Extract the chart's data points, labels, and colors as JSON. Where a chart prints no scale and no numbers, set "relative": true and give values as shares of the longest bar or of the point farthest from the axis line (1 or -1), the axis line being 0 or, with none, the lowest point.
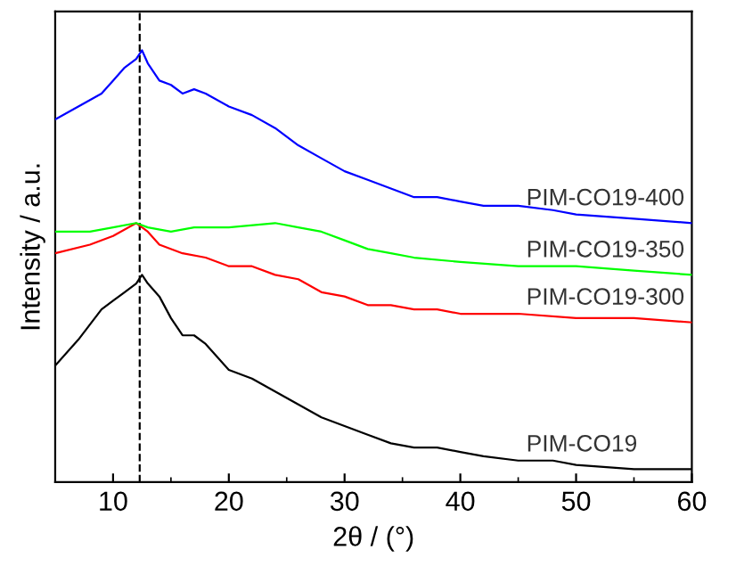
{
  "chart_data": {
    "type": "line",
    "relative": true,
    "xlabel": "2θ / (°)",
    "ylabel": "Intensity / a.u.",
    "xlim": [
      5,
      60
    ],
    "xticks": [
      10,
      20,
      30,
      40,
      50,
      60
    ],
    "legend": false,
    "grid": false,
    "marker": "none",
    "line_style": "solid",
    "ref_lines": [
      {
        "axis": "x",
        "value": 12.3,
        "color": "#000000",
        "line_style": "dashed"
      }
    ],
    "series": [
      {
        "name": "PIM-CO19-400",
        "color": "#0000ff",
        "x": [
          5,
          7,
          9,
          10,
          11,
          12,
          12.5,
          13,
          14,
          15,
          16,
          17,
          18,
          20,
          22,
          24,
          25,
          26,
          28,
          30,
          32,
          34,
          36,
          38,
          40,
          42,
          45,
          48,
          50,
          55,
          60
        ],
        "values": [
          0.84,
          0.87,
          0.9,
          0.93,
          0.96,
          0.98,
          1,
          0.97,
          0.93,
          0.92,
          0.9,
          0.91,
          0.9,
          0.87,
          0.85,
          0.82,
          0.8,
          0.78,
          0.75,
          0.72,
          0.7,
          0.68,
          0.66,
          0.66,
          0.65,
          0.64,
          0.64,
          0.63,
          0.62,
          0.61,
          0.6
        ]
      },
      {
        "name": "PIM-CO19-350",
        "color": "#00ff00",
        "x": [
          5,
          8,
          10,
          12,
          13,
          15,
          17,
          20,
          24,
          26,
          28,
          30,
          32,
          34,
          36,
          40,
          45,
          50,
          55,
          60
        ],
        "values": [
          0.58,
          0.58,
          0.59,
          0.6,
          0.59,
          0.58,
          0.59,
          0.59,
          0.6,
          0.59,
          0.58,
          0.56,
          0.54,
          0.53,
          0.52,
          0.51,
          0.5,
          0.5,
          0.49,
          0.48
        ]
      },
      {
        "name": "PIM-CO19-300",
        "color": "#ff0000",
        "x": [
          5,
          8,
          10,
          12,
          13,
          14,
          16,
          18,
          20,
          22,
          24,
          26,
          28,
          30,
          32,
          34,
          36,
          38,
          40,
          45,
          50,
          55,
          60
        ],
        "values": [
          0.53,
          0.55,
          0.57,
          0.6,
          0.58,
          0.55,
          0.53,
          0.52,
          0.5,
          0.5,
          0.48,
          0.47,
          0.44,
          0.43,
          0.41,
          0.41,
          0.4,
          0.4,
          0.39,
          0.39,
          0.38,
          0.38,
          0.37
        ]
      },
      {
        "name": "PIM-CO19",
        "color": "#000000",
        "x": [
          5,
          7,
          9,
          10,
          11,
          12,
          12.5,
          13,
          14,
          15,
          16,
          17,
          18,
          19,
          20,
          22,
          24,
          26,
          28,
          30,
          32,
          34,
          36,
          38,
          40,
          42,
          45,
          48,
          50,
          55,
          60
        ],
        "values": [
          0.27,
          0.33,
          0.4,
          0.42,
          0.44,
          0.46,
          0.48,
          0.46,
          0.43,
          0.38,
          0.34,
          0.34,
          0.32,
          0.29,
          0.26,
          0.24,
          0.21,
          0.18,
          0.15,
          0.13,
          0.11,
          0.09,
          0.08,
          0.08,
          0.07,
          0.06,
          0.05,
          0.05,
          0.04,
          0.03,
          0.03
        ]
      }
    ]
  }
}
